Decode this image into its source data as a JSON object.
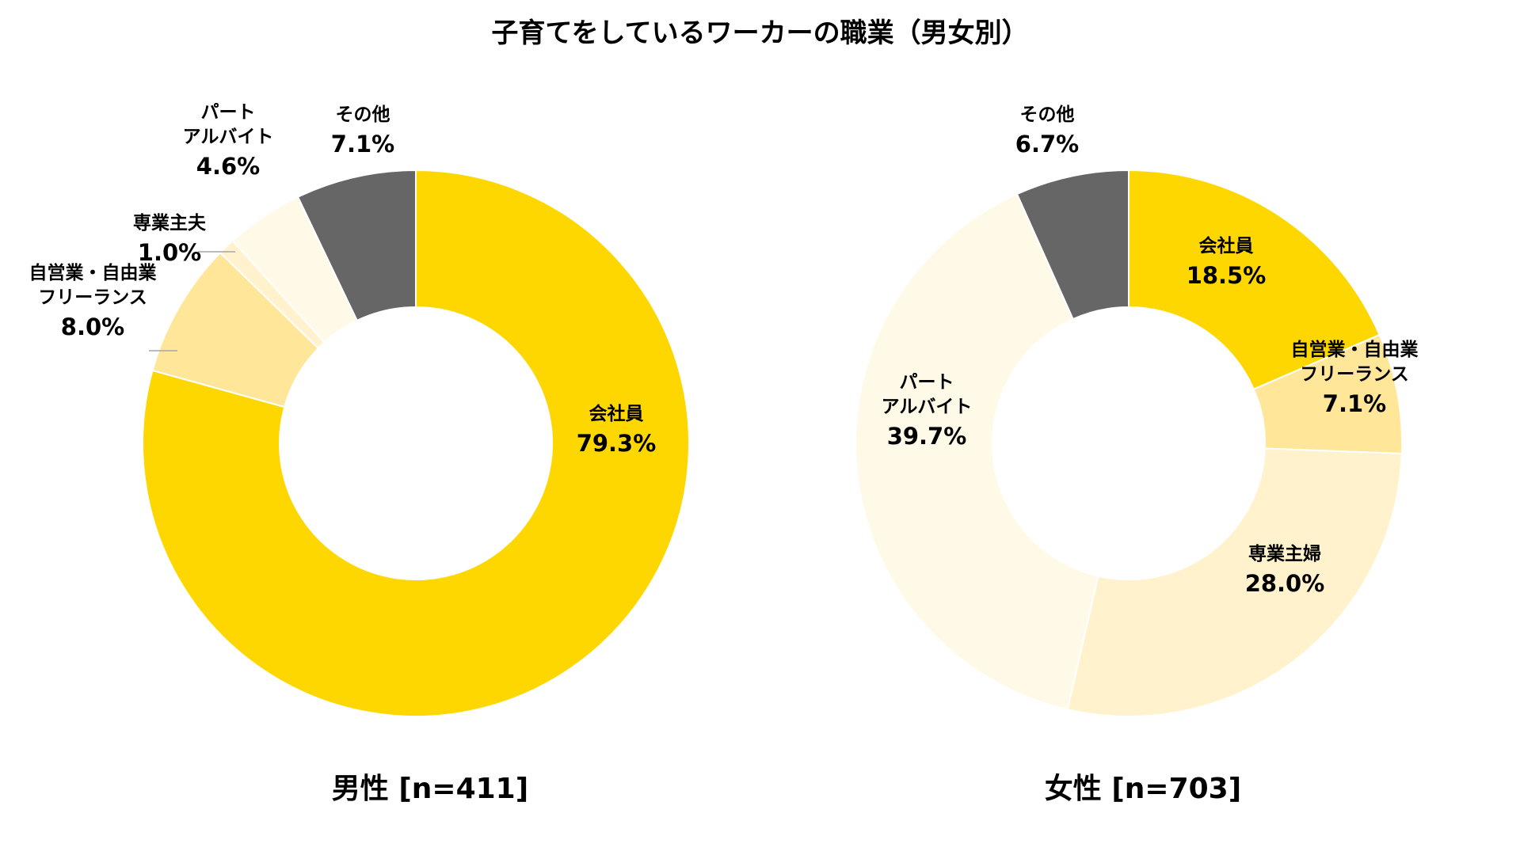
{
  "title": "子育てをしているワーカーの職業（男女別）",
  "chart_data": [
    {
      "type": "pie",
      "subtitle": "男性 [n=411]",
      "slices": [
        {
          "label": [
            "会社員"
          ],
          "value": 79.3,
          "display": "79.3%",
          "color": "#FFD700"
        },
        {
          "label": [
            "自営業・自由業",
            "フリーランス"
          ],
          "value": 8.0,
          "display": "8.0%",
          "color": "#FFE699"
        },
        {
          "label": [
            "専業主夫"
          ],
          "value": 1.0,
          "display": "1.0%",
          "color": "#FFF2CC"
        },
        {
          "label": [
            "パート",
            "アルバイト"
          ],
          "value": 4.6,
          "display": "4.6%",
          "color": "#FFFAE8"
        },
        {
          "label": [
            "その他"
          ],
          "value": 7.1,
          "display": "7.1%",
          "color": "#666666"
        }
      ]
    },
    {
      "type": "pie",
      "subtitle": "女性 [n=703]",
      "slices": [
        {
          "label": [
            "会社員"
          ],
          "value": 18.5,
          "display": "18.5%",
          "color": "#FFD700"
        },
        {
          "label": [
            "自営業・自由業",
            "フリーランス"
          ],
          "value": 7.1,
          "display": "7.1%",
          "color": "#FFE699"
        },
        {
          "label": [
            "専業主婦"
          ],
          "value": 28.0,
          "display": "28.0%",
          "color": "#FFF2CC"
        },
        {
          "label": [
            "パート",
            "アルバイト"
          ],
          "value": 39.7,
          "display": "39.7%",
          "color": "#FFFAE8"
        },
        {
          "label": [
            "その他"
          ],
          "value": 6.7,
          "display": "6.7%",
          "color": "#666666"
        }
      ]
    }
  ]
}
